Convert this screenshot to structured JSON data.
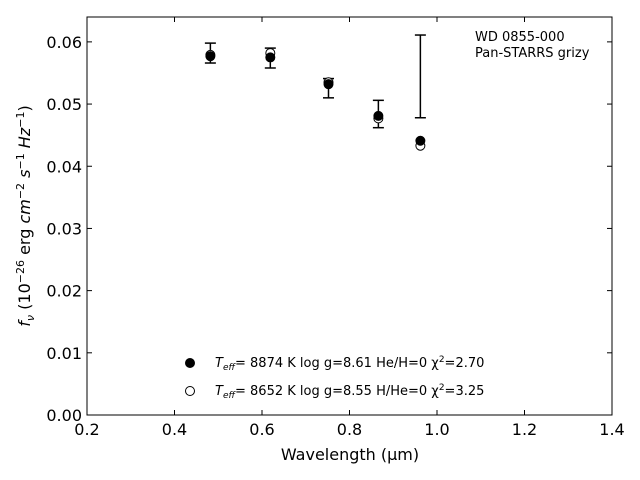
{
  "chart_data": {
    "type": "scatter",
    "xlabel": "Wavelength (μm)",
    "ylabel": "fν (10⁻²⁶ erg cm⁻² s⁻¹ Hz⁻¹)",
    "xlim": [
      0.2,
      1.4
    ],
    "ylim": [
      0.0,
      0.064
    ],
    "xticks": [
      "0.2",
      "0.4",
      "0.6",
      "0.8",
      "1.0",
      "1.2",
      "1.4"
    ],
    "yticks": [
      "0.00",
      "0.01",
      "0.02",
      "0.03",
      "0.04",
      "0.05",
      "0.06"
    ],
    "grid": false,
    "annotation": [
      "WD 0855-000",
      "Pan-STARRS grizy"
    ],
    "observed": {
      "x": [
        0.482,
        0.619,
        0.752,
        0.866,
        0.962
      ],
      "y_low": [
        0.0566,
        0.0558,
        0.051,
        0.0462,
        0.0478
      ],
      "y_high": [
        0.0598,
        0.059,
        0.0541,
        0.0506,
        0.0611
      ]
    },
    "series": [
      {
        "label_parts": [
          "T",
          "eff",
          "=  8874 K  log g=8.61  He/H=0  χ",
          "2",
          "=2.70"
        ],
        "marker": "filled-circle",
        "x": [
          0.482,
          0.619,
          0.752,
          0.866,
          0.962
        ],
        "y": [
          0.0577,
          0.0575,
          0.0532,
          0.0481,
          0.0441
        ]
      },
      {
        "label_parts": [
          "T",
          "eff",
          "=  8652 K  log g=8.55  H/He=0  χ",
          "2",
          "=3.25"
        ],
        "marker": "open-circle",
        "x": [
          0.482,
          0.619,
          0.752,
          0.866,
          0.962
        ],
        "y": [
          0.0579,
          0.0582,
          0.0535,
          0.0477,
          0.0433
        ]
      }
    ],
    "legend_position": "bottom-center"
  }
}
